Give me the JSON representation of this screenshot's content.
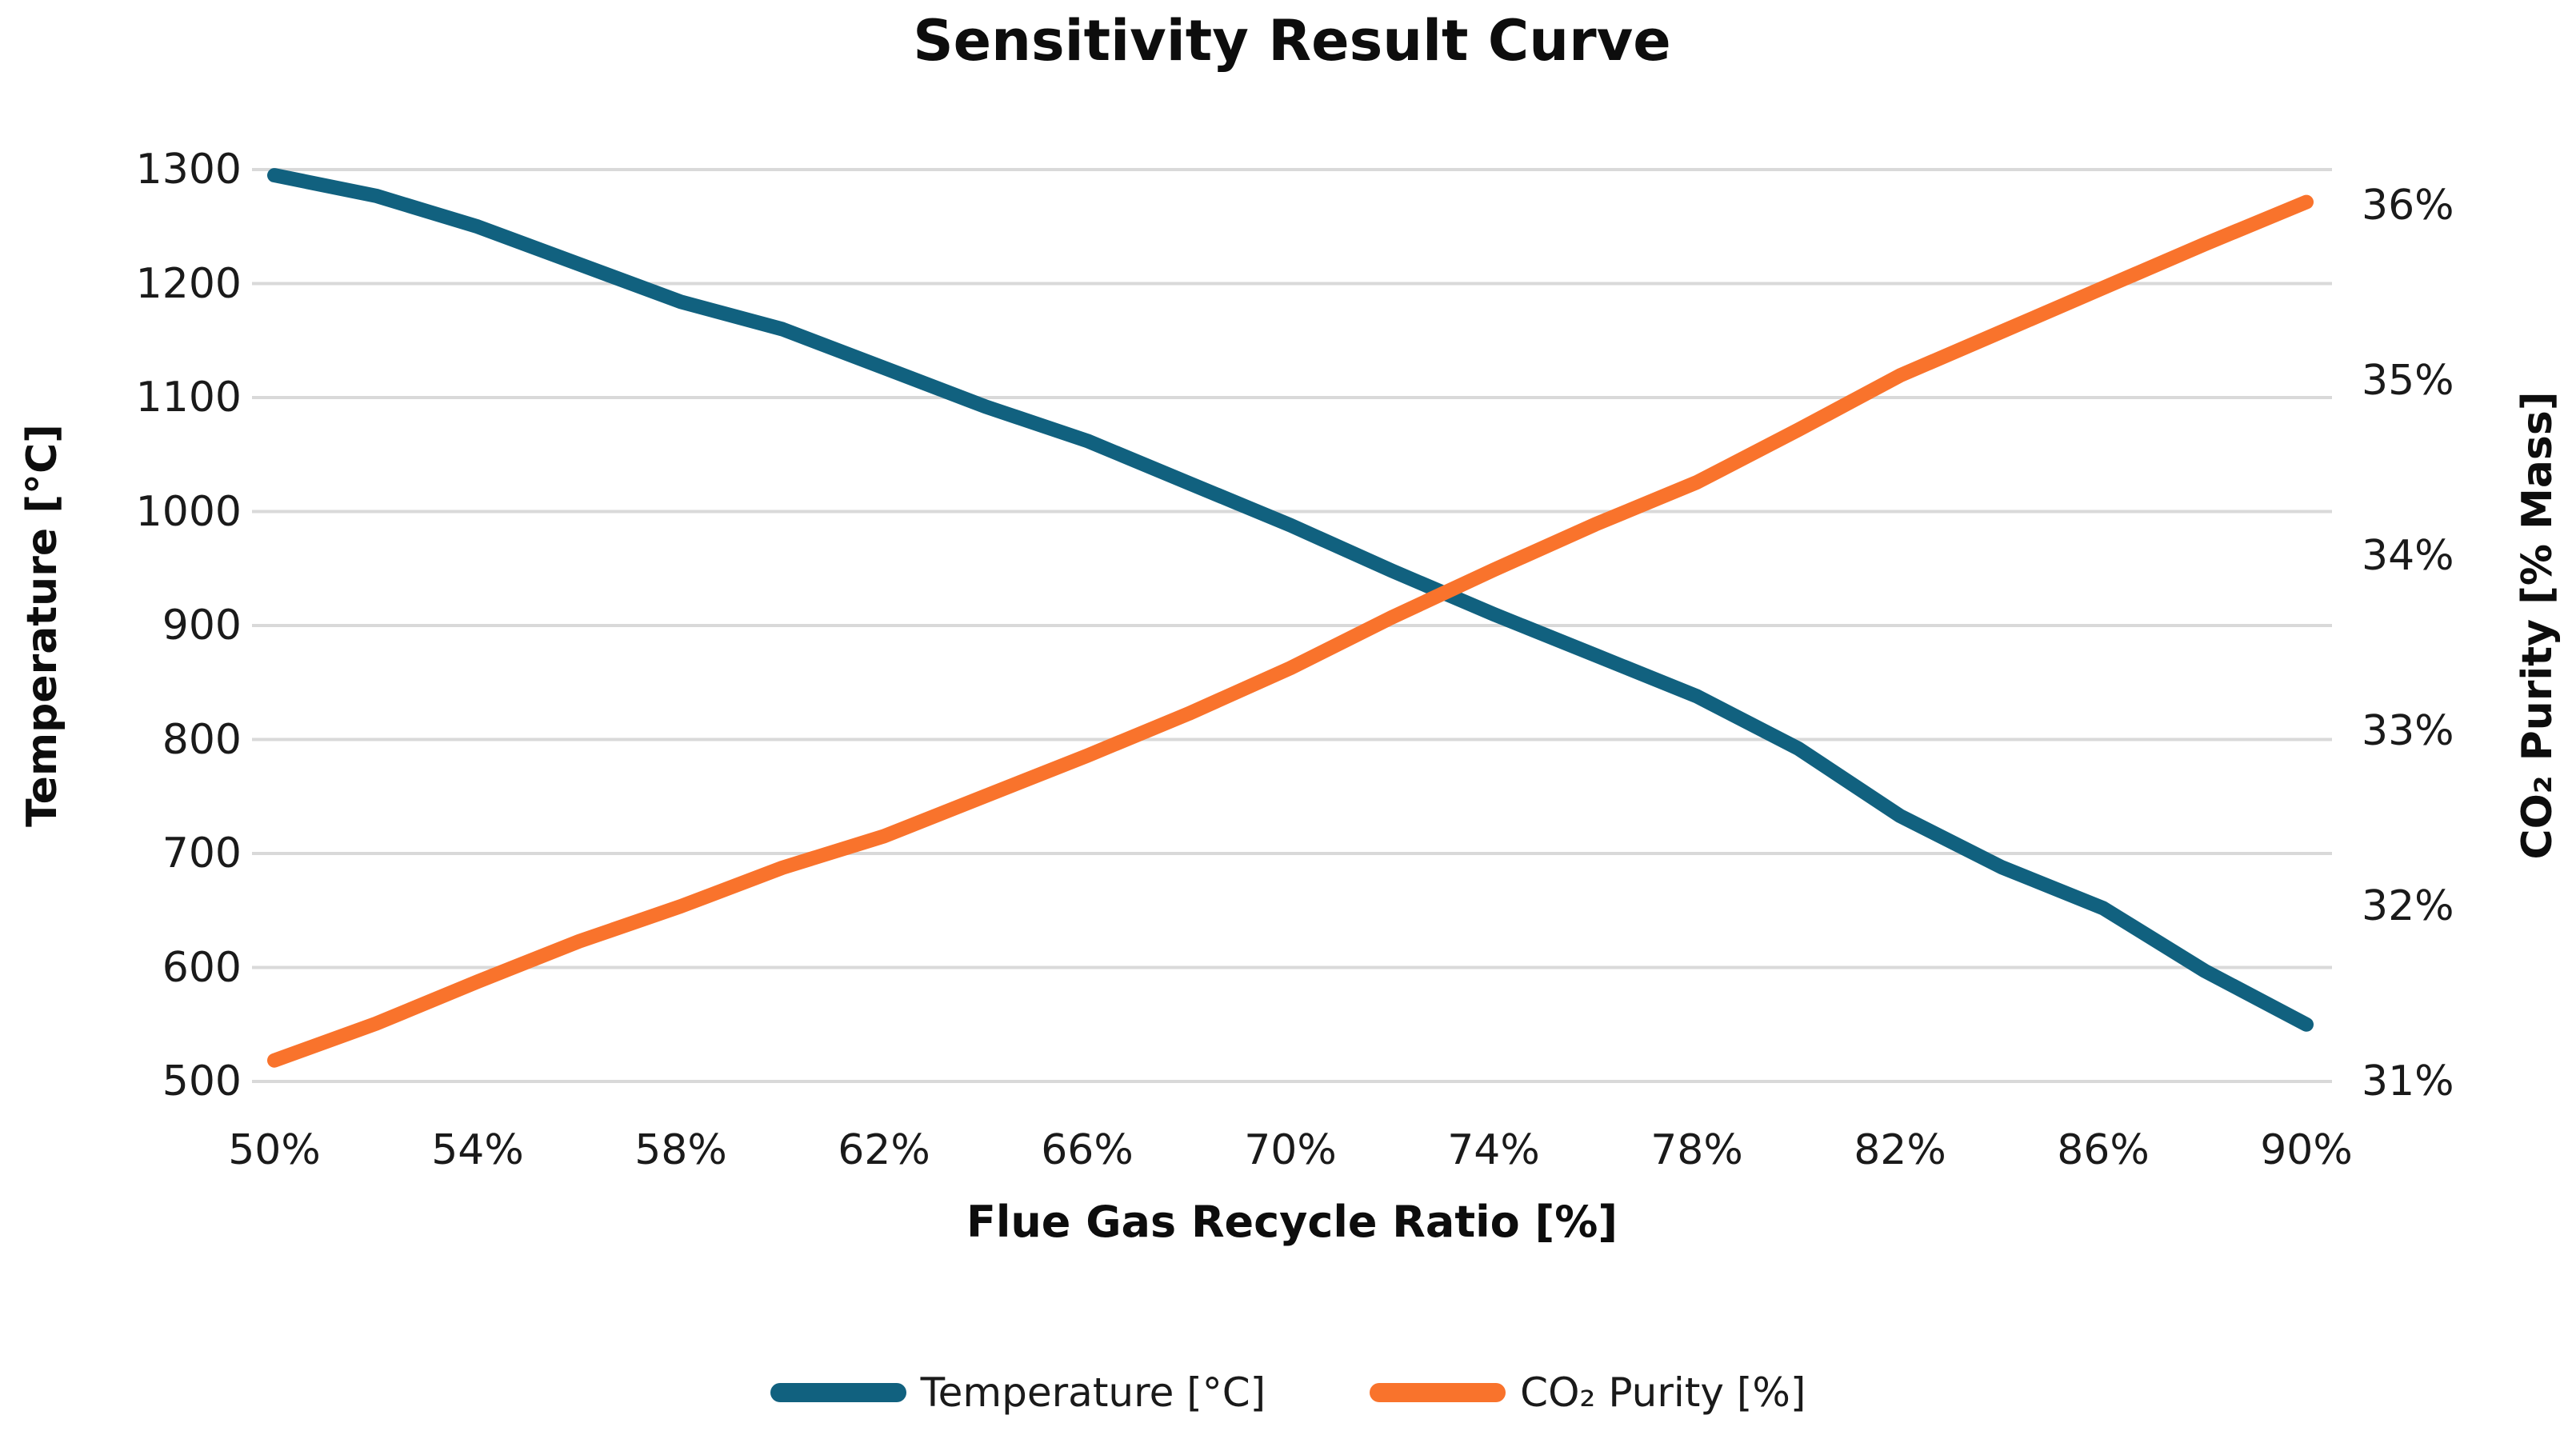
{
  "page": {
    "title": "Sensitivity Result Curve"
  },
  "chart_data": {
    "type": "line",
    "title": "Sensitivity Result Curve",
    "xlabel": "Flue Gas Recycle Ratio [%]",
    "x": [
      50,
      52,
      54,
      56,
      58,
      60,
      62,
      64,
      66,
      68,
      70,
      72,
      74,
      76,
      78,
      80,
      82,
      84,
      86,
      88,
      90
    ],
    "x_tick_labels": [
      "50%",
      "54%",
      "58%",
      "62%",
      "66%",
      "70%",
      "74%",
      "78%",
      "82%",
      "86%",
      "90%"
    ],
    "left_axis": {
      "title": "Temperature [°C]",
      "min": 500,
      "max": 1300,
      "ticks": [
        "1300",
        "1200",
        "1100",
        "1000",
        "900",
        "800",
        "700",
        "600",
        "500"
      ]
    },
    "right_axis": {
      "title": "CO₂ Purity [% Mass]",
      "min": 31,
      "max": 36,
      "ticks": [
        "36%",
        "35%",
        "34%",
        "33%",
        "32%",
        "31%"
      ]
    },
    "series": [
      {
        "name": "Temperature [°C]",
        "axis": "left",
        "color": "#11617F",
        "values": [
          1295,
          1277,
          1250,
          1217,
          1184,
          1160,
          1126,
          1092,
          1062,
          1025,
          988,
          948,
          910,
          874,
          838,
          792,
          733,
          688,
          652,
          597,
          550
        ]
      },
      {
        "name": "CO₂ Purity [%]",
        "axis": "right",
        "color": "#F9732C",
        "values": [
          31.12,
          31.33,
          31.57,
          31.8,
          32.0,
          32.22,
          32.4,
          32.63,
          32.86,
          33.1,
          33.36,
          33.65,
          33.92,
          34.18,
          34.42,
          34.72,
          35.03,
          35.28,
          35.53,
          35.78,
          36.02
        ]
      }
    ],
    "grid": true,
    "legend_position": "bottom"
  },
  "legend": {
    "items": [
      {
        "label": "Temperature [°C]",
        "color": "#11617F"
      },
      {
        "label": "CO₂ Purity [%]",
        "color": "#F9732C"
      }
    ]
  },
  "colors": {
    "background": "#FFFFFF",
    "gridline": "#D9D9D9",
    "text": "#1A1A1A",
    "temperature_line": "#11617F",
    "co2_line": "#F9732C"
  }
}
